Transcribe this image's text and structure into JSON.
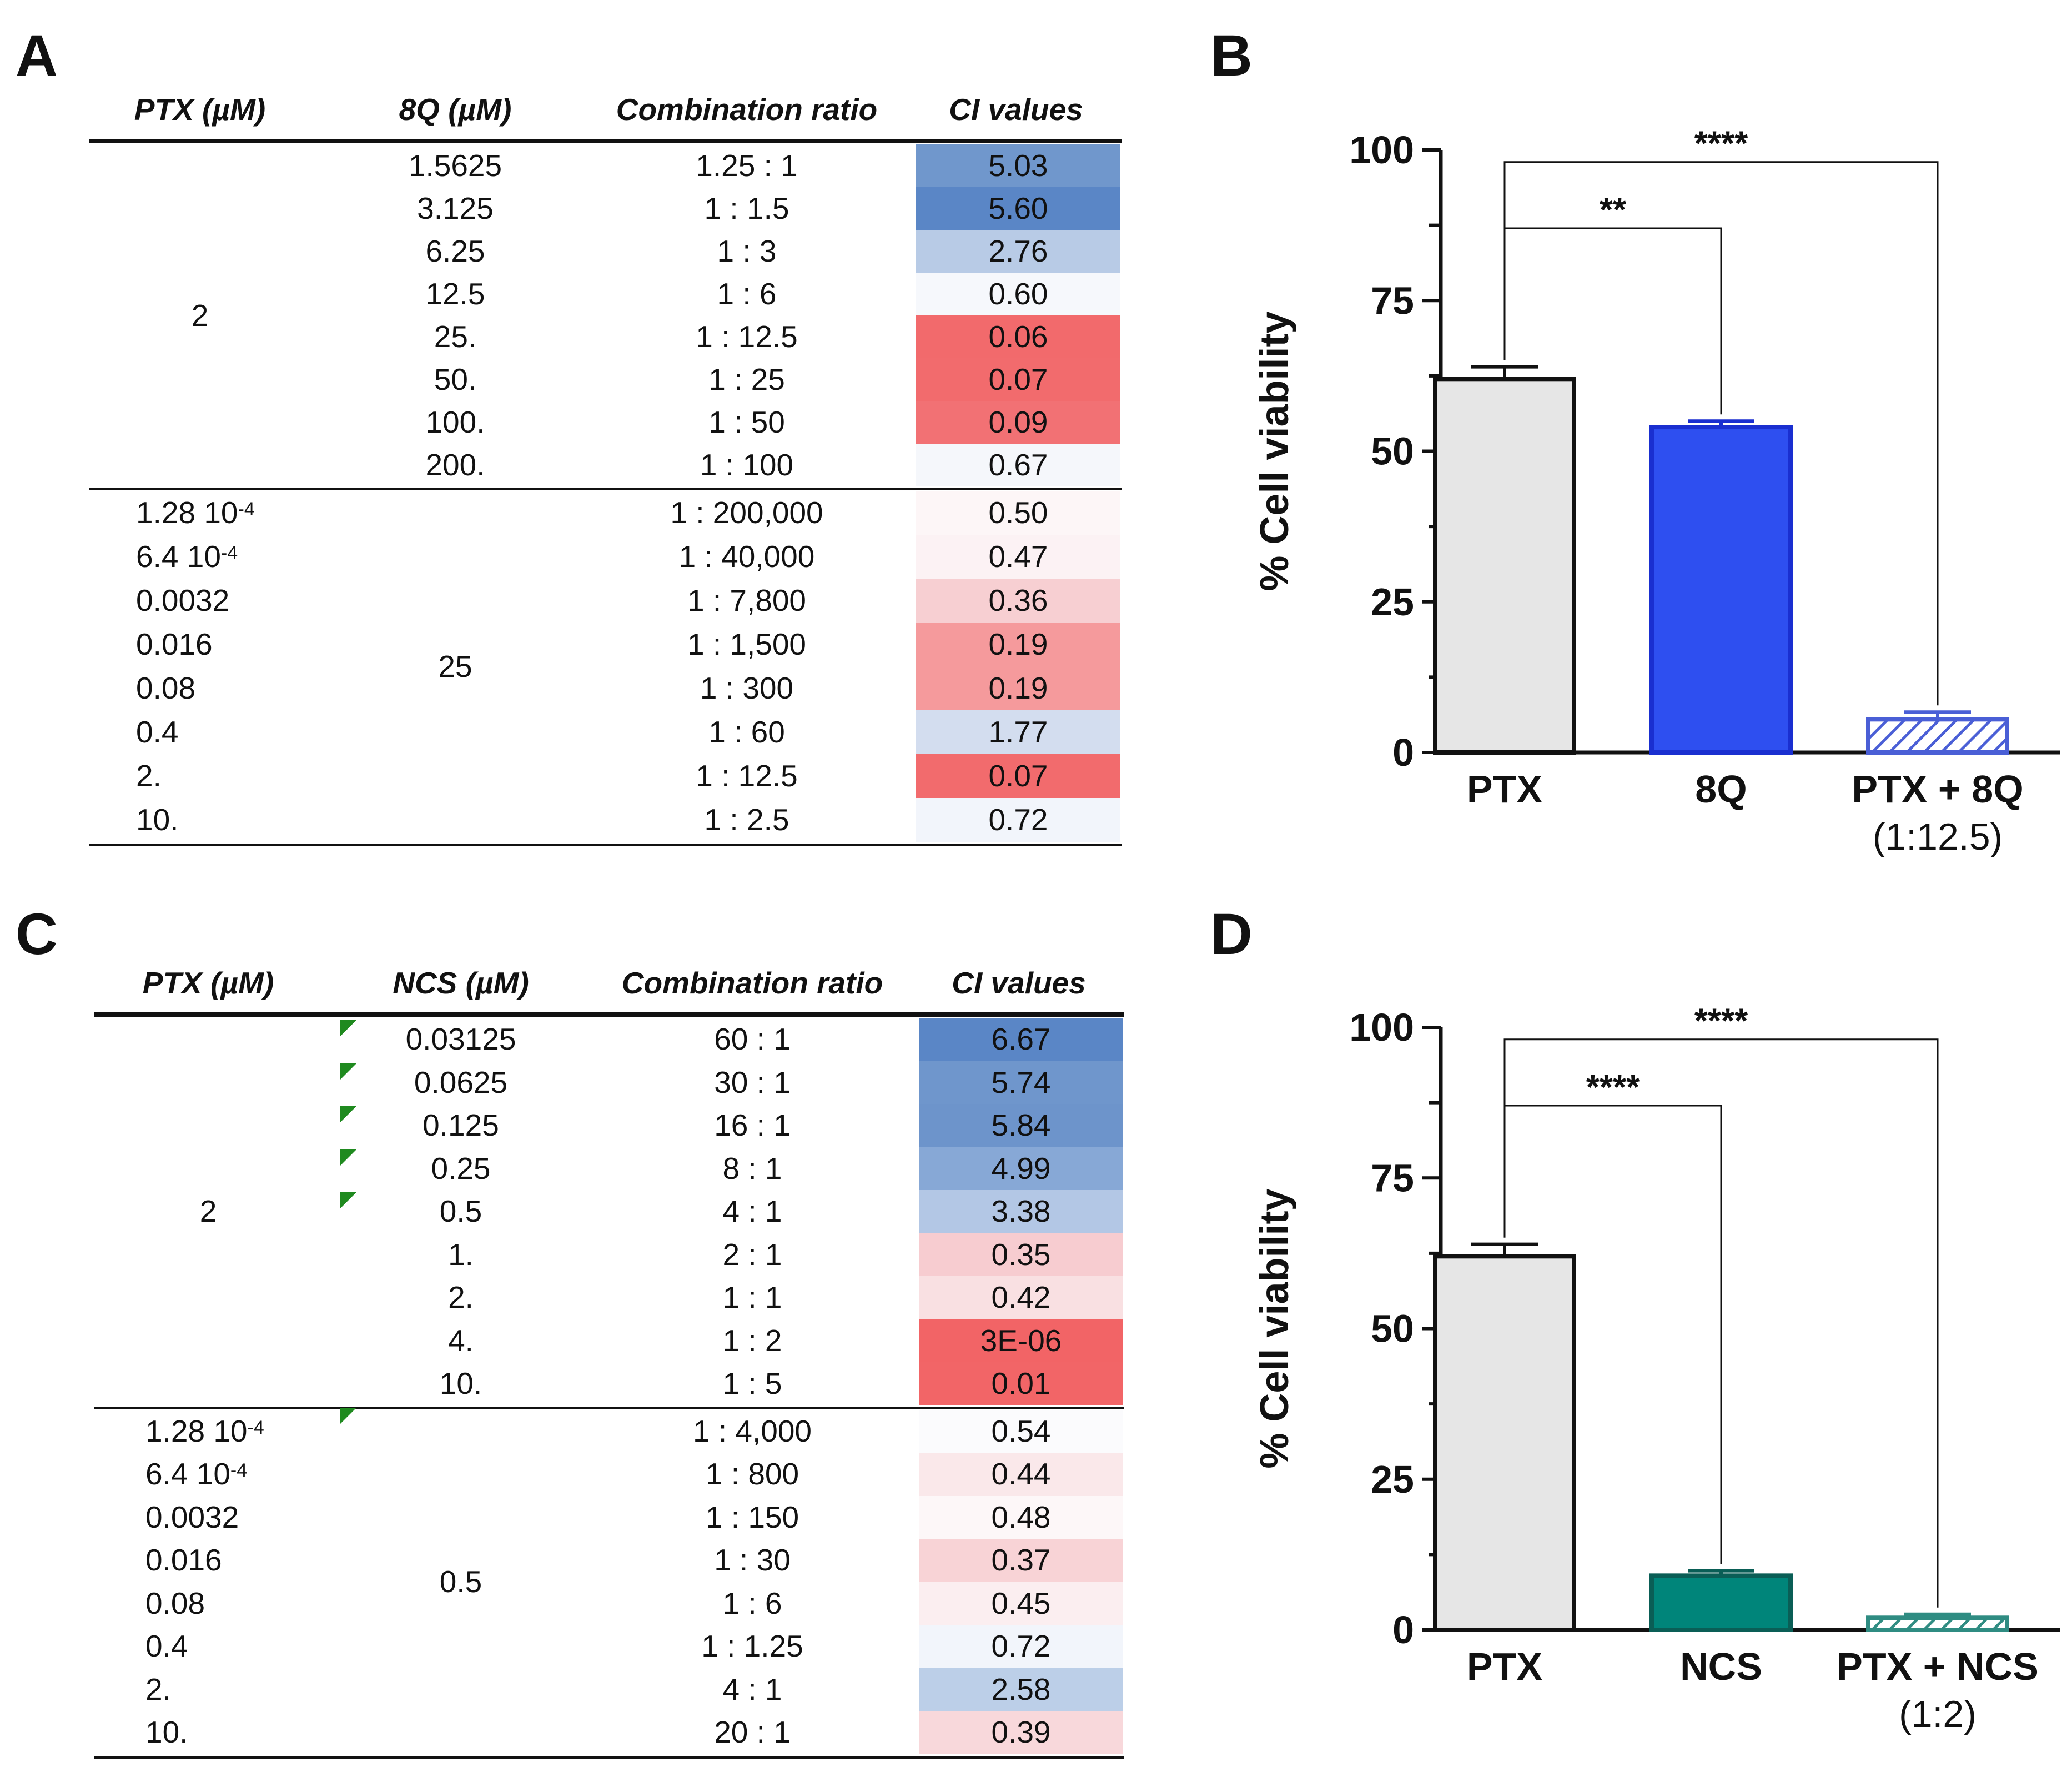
{
  "panels": {
    "A": "A",
    "B": "B",
    "C": "C",
    "D": "D"
  },
  "tableA": {
    "headers": [
      "PTX (µM)",
      "8Q (µM)",
      "Combination ratio",
      "CI values"
    ],
    "group1": {
      "ptx": "2",
      "rows": [
        {
          "drug": "1.5625",
          "ratio": "1.25 : 1",
          "ci": "5.03",
          "color": "#7097cc"
        },
        {
          "drug": "3.125",
          "ratio": "1 : 1.5",
          "ci": "5.60",
          "color": "#5a86c6"
        },
        {
          "drug": "6.25",
          "ratio": "1 : 3",
          "ci": "2.76",
          "color": "#b8cbe6"
        },
        {
          "drug": "12.5",
          "ratio": "1 : 6",
          "ci": "0.60",
          "color": "#f6f8fc"
        },
        {
          "drug": "25.",
          "ratio": "1 : 12.5",
          "ci": "0.06",
          "color": "#f26a6c"
        },
        {
          "drug": "50.",
          "ratio": "1 : 25",
          "ci": "0.07",
          "color": "#f26b6d"
        },
        {
          "drug": "100.",
          "ratio": "1 : 50",
          "ci": "0.09",
          "color": "#f27174"
        },
        {
          "drug": "200.",
          "ratio": "1 : 100",
          "ci": "0.67",
          "color": "#f5f7fb"
        }
      ]
    },
    "group2": {
      "drug": "25",
      "rows": [
        {
          "ptx": "1.28 10",
          "exp": "-4",
          "ratio": "1 : 200,000",
          "ci": "0.50",
          "color": "#fdf6f7"
        },
        {
          "ptx": "6.4 10",
          "exp": "-4",
          "ratio": "1 : 40,000",
          "ci": "0.47",
          "color": "#fcf2f4"
        },
        {
          "ptx": "0.0032",
          "exp": "",
          "ratio": "1 : 7,800",
          "ci": "0.36",
          "color": "#f7cfd2"
        },
        {
          "ptx": "0.016",
          "exp": "",
          "ratio": "1 : 1,500",
          "ci": "0.19",
          "color": "#f59a9c"
        },
        {
          "ptx": "0.08",
          "exp": "",
          "ratio": "1 : 300",
          "ci": "0.19",
          "color": "#f59a9c"
        },
        {
          "ptx": "0.4",
          "exp": "",
          "ratio": "1 : 60",
          "ci": "1.77",
          "color": "#d3ddef"
        },
        {
          "ptx": "2.",
          "exp": "",
          "ratio": "1 : 12.5",
          "ci": "0.07",
          "color": "#f26b6d"
        },
        {
          "ptx": "10.",
          "exp": "",
          "ratio": "1 : 2.5",
          "ci": "0.72",
          "color": "#f2f5fb"
        }
      ]
    }
  },
  "tableC": {
    "headers": [
      "PTX (µM)",
      "NCS (µM)",
      "Combination ratio",
      "CI values"
    ],
    "group1": {
      "ptx": "2",
      "rows": [
        {
          "drug": "0.03125",
          "ratio": "60 : 1",
          "ci": "6.67",
          "color": "#5a86c6",
          "flag": true
        },
        {
          "drug": "0.0625",
          "ratio": "30 : 1",
          "ci": "5.74",
          "color": "#6f96cc",
          "flag": true
        },
        {
          "drug": "0.125",
          "ratio": "16 : 1",
          "ci": "5.84",
          "color": "#6d94cb",
          "flag": true
        },
        {
          "drug": "0.25",
          "ratio": "8 : 1",
          "ci": "4.99",
          "color": "#87a8d6",
          "flag": true
        },
        {
          "drug": "0.5",
          "ratio": "4 : 1",
          "ci": "3.38",
          "color": "#b3c7e5",
          "flag": true
        },
        {
          "drug": "1.",
          "ratio": "2 : 1",
          "ci": "0.35",
          "color": "#f7ccd0",
          "flag": false
        },
        {
          "drug": "2.",
          "ratio": "1 : 1",
          "ci": "0.42",
          "color": "#f9e0e2",
          "flag": false
        },
        {
          "drug": "4.",
          "ratio": "1 : 2",
          "ci": "3E-06",
          "color": "#f26466",
          "flag": false
        },
        {
          "drug": "10.",
          "ratio": "1 : 5",
          "ci": "0.01",
          "color": "#f26567",
          "flag": false
        }
      ]
    },
    "group2": {
      "drug": "0.5",
      "rows": [
        {
          "ptx": "1.28 10",
          "exp": "-4",
          "ratio": "1 : 4,000",
          "ci": "0.54",
          "color": "#fbfbfd",
          "flag": true
        },
        {
          "ptx": "6.4 10",
          "exp": "-4",
          "ratio": "1 : 800",
          "ci": "0.44",
          "color": "#fae8ea",
          "flag": false
        },
        {
          "ptx": "0.0032",
          "exp": "",
          "ratio": "1 : 150",
          "ci": "0.48",
          "color": "#fdf7f8",
          "flag": false
        },
        {
          "ptx": "0.016",
          "exp": "",
          "ratio": "1 : 30",
          "ci": "0.37",
          "color": "#f8d3d6",
          "flag": false
        },
        {
          "ptx": "0.08",
          "exp": "",
          "ratio": "1 : 6",
          "ci": "0.45",
          "color": "#fbeef0",
          "flag": false
        },
        {
          "ptx": "0.4",
          "exp": "",
          "ratio": "1 : 1.25",
          "ci": "0.72",
          "color": "#f2f5fb",
          "flag": false
        },
        {
          "ptx": "2.",
          "exp": "",
          "ratio": "4 : 1",
          "ci": "2.58",
          "color": "#bccfe8",
          "flag": false
        },
        {
          "ptx": "10.",
          "exp": "",
          "ratio": "20 : 1",
          "ci": "0.39",
          "color": "#f8d8db",
          "flag": false
        }
      ]
    }
  },
  "chart_data": [
    {
      "type": "bar",
      "panel": "B",
      "categories": [
        "PTX",
        "8Q",
        "PTX + 8Q"
      ],
      "category_sublabels": [
        "",
        "",
        "(1:12.5)"
      ],
      "values": [
        62,
        54,
        5.5
      ],
      "errors": [
        2,
        1,
        1.2
      ],
      "ylabel": "% Cell viability",
      "ylim": [
        0,
        100
      ],
      "yticks": [
        "0",
        "25",
        "50",
        "75",
        "100"
      ],
      "colors": [
        "#e6e6e6",
        "#2e4ff0",
        "#4a5fd6"
      ],
      "hatched": [
        false,
        false,
        true
      ],
      "significance": [
        {
          "from": 0,
          "to": 1,
          "label": "**"
        },
        {
          "from": 0,
          "to": 2,
          "label": "****"
        }
      ]
    },
    {
      "type": "bar",
      "panel": "D",
      "categories": [
        "PTX",
        "NCS",
        "PTX + NCS"
      ],
      "category_sublabels": [
        "",
        "",
        "(1:2)"
      ],
      "values": [
        62,
        9,
        2
      ],
      "errors": [
        2,
        0.8,
        0.6
      ],
      "ylabel": "% Cell viability",
      "ylim": [
        0,
        100
      ],
      "yticks": [
        "0",
        "25",
        "50",
        "75",
        "100"
      ],
      "colors": [
        "#e6e6e6",
        "#00857a",
        "#2f8c82"
      ],
      "hatched": [
        false,
        false,
        true
      ],
      "significance": [
        {
          "from": 0,
          "to": 1,
          "label": "****"
        },
        {
          "from": 0,
          "to": 2,
          "label": "****"
        }
      ]
    }
  ]
}
